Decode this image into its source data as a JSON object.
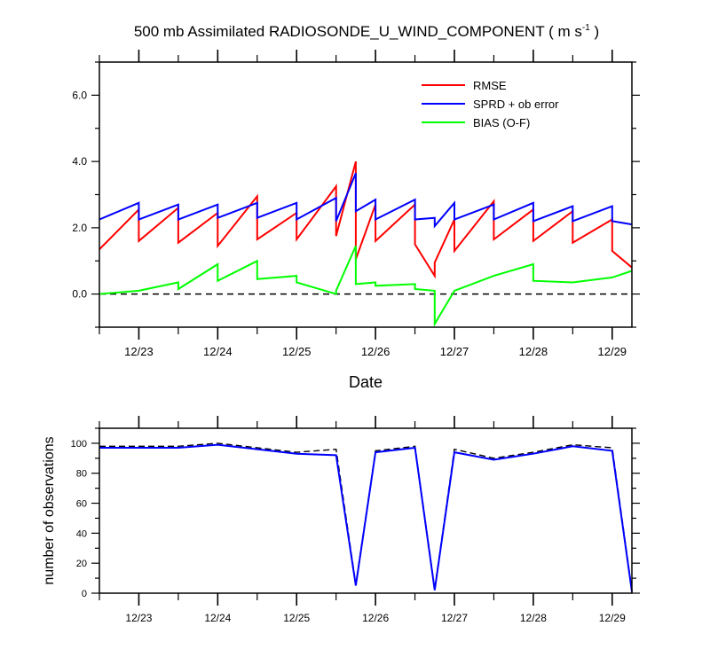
{
  "title": "500 mb Assimilated RADIOSONDE_U_WIND_COMPONENT ( m s",
  "title_sup": "-1",
  "title_end": " )",
  "chart_data": [
    {
      "type": "line",
      "xlabel": "Date",
      "ylabel": "",
      "xlim": [
        0,
        6.75
      ],
      "ylim": [
        -1.0,
        7.0
      ],
      "x_ticks": [
        {
          "x": 0.5,
          "label": "12/23"
        },
        {
          "x": 1.5,
          "label": "12/24"
        },
        {
          "x": 2.5,
          "label": "12/25"
        },
        {
          "x": 3.5,
          "label": "12/26"
        },
        {
          "x": 4.5,
          "label": "12/27"
        },
        {
          "x": 5.5,
          "label": "12/28"
        },
        {
          "x": 6.5,
          "label": "12/29"
        }
      ],
      "y_ticks": [
        {
          "y": 0,
          "label": "0.0"
        },
        {
          "y": 2,
          "label": "2.0"
        },
        {
          "y": 4,
          "label": "4.0"
        },
        {
          "y": 6,
          "label": "6.0"
        }
      ],
      "legend_position": "top-right",
      "reference_line": {
        "y": 0,
        "style": "dashed"
      },
      "series": [
        {
          "name": "RMSE",
          "color": "#ff0000",
          "points": [
            [
              0,
              1.35
            ],
            [
              0.5,
              2.55
            ],
            [
              0.5,
              1.6
            ],
            [
              1.0,
              2.6
            ],
            [
              1.0,
              1.55
            ],
            [
              1.5,
              2.45
            ],
            [
              1.5,
              1.45
            ],
            [
              2.0,
              2.95
            ],
            [
              2.0,
              1.65
            ],
            [
              2.5,
              2.45
            ],
            [
              2.5,
              1.65
            ],
            [
              3.0,
              3.25
            ],
            [
              3.0,
              1.75
            ],
            [
              3.25,
              4.0
            ],
            [
              3.25,
              1.05
            ],
            [
              3.5,
              2.7
            ],
            [
              3.5,
              1.6
            ],
            [
              4.0,
              2.7
            ],
            [
              4.0,
              1.5
            ],
            [
              4.25,
              0.55
            ],
            [
              4.25,
              0.95
            ],
            [
              4.5,
              2.25
            ],
            [
              4.5,
              1.3
            ],
            [
              5.0,
              2.8
            ],
            [
              5.0,
              1.65
            ],
            [
              5.5,
              2.55
            ],
            [
              5.5,
              1.6
            ],
            [
              6.0,
              2.5
            ],
            [
              6.0,
              1.55
            ],
            [
              6.5,
              2.25
            ],
            [
              6.5,
              1.3
            ],
            [
              6.75,
              0.8
            ]
          ]
        },
        {
          "name": "SPRD + ob error",
          "color": "#0000ff",
          "points": [
            [
              0,
              2.25
            ],
            [
              0.5,
              2.75
            ],
            [
              0.5,
              2.25
            ],
            [
              1.0,
              2.7
            ],
            [
              1.0,
              2.25
            ],
            [
              1.5,
              2.7
            ],
            [
              1.5,
              2.3
            ],
            [
              2.0,
              2.75
            ],
            [
              2.0,
              2.3
            ],
            [
              2.5,
              2.75
            ],
            [
              2.5,
              2.25
            ],
            [
              3.0,
              2.9
            ],
            [
              3.0,
              2.2
            ],
            [
              3.25,
              3.65
            ],
            [
              3.25,
              2.5
            ],
            [
              3.5,
              2.85
            ],
            [
              3.5,
              2.25
            ],
            [
              4.0,
              2.85
            ],
            [
              4.0,
              2.25
            ],
            [
              4.25,
              2.3
            ],
            [
              4.25,
              2.05
            ],
            [
              4.5,
              2.75
            ],
            [
              4.5,
              2.25
            ],
            [
              5.0,
              2.7
            ],
            [
              5.0,
              2.25
            ],
            [
              5.5,
              2.75
            ],
            [
              5.5,
              2.2
            ],
            [
              6.0,
              2.65
            ],
            [
              6.0,
              2.2
            ],
            [
              6.5,
              2.65
            ],
            [
              6.5,
              2.2
            ],
            [
              6.75,
              2.1
            ]
          ]
        },
        {
          "name": "BIAS (O-F)",
          "color": "#00ff00",
          "points": [
            [
              0,
              0
            ],
            [
              0.5,
              0.1
            ],
            [
              1.0,
              0.35
            ],
            [
              1.0,
              0.15
            ],
            [
              1.5,
              0.9
            ],
            [
              1.5,
              0.4
            ],
            [
              2.0,
              1.0
            ],
            [
              2.0,
              0.45
            ],
            [
              2.5,
              0.55
            ],
            [
              2.5,
              0.35
            ],
            [
              3.0,
              0.0
            ],
            [
              3.0,
              0.1
            ],
            [
              3.25,
              1.45
            ],
            [
              3.25,
              0.3
            ],
            [
              3.5,
              0.35
            ],
            [
              3.5,
              0.25
            ],
            [
              4.0,
              0.3
            ],
            [
              4.0,
              0.15
            ],
            [
              4.25,
              0.1
            ],
            [
              4.25,
              -0.9
            ],
            [
              4.5,
              0.1
            ],
            [
              5.0,
              0.55
            ],
            [
              5.5,
              0.9
            ],
            [
              5.5,
              0.4
            ],
            [
              6.0,
              0.35
            ],
            [
              6.5,
              0.5
            ],
            [
              6.75,
              0.7
            ]
          ]
        }
      ]
    },
    {
      "type": "line",
      "xlabel": "",
      "ylabel": "number of observations",
      "xlim": [
        0,
        6.75
      ],
      "ylim": [
        0,
        110
      ],
      "x_ticks": [
        {
          "x": 0.5,
          "label": "12/23"
        },
        {
          "x": 1.5,
          "label": "12/24"
        },
        {
          "x": 2.5,
          "label": "12/25"
        },
        {
          "x": 3.5,
          "label": "12/26"
        },
        {
          "x": 4.5,
          "label": "12/27"
        },
        {
          "x": 5.5,
          "label": "12/28"
        },
        {
          "x": 6.5,
          "label": "12/29"
        }
      ],
      "y_ticks": [
        {
          "y": 0,
          "label": "0"
        },
        {
          "y": 20,
          "label": "20"
        },
        {
          "y": 40,
          "label": "40"
        },
        {
          "y": 60,
          "label": "60"
        },
        {
          "y": 80,
          "label": "80"
        },
        {
          "y": 100,
          "label": "100"
        }
      ],
      "series": [
        {
          "style": "dashed",
          "color": "#000000",
          "points": [
            [
              0,
              98
            ],
            [
              1.0,
              98
            ],
            [
              1.5,
              100
            ],
            [
              2.5,
              94
            ],
            [
              3.0,
              96
            ],
            [
              3.25,
              6
            ],
            [
              3.5,
              95
            ],
            [
              4.0,
              98
            ],
            [
              4.25,
              3
            ],
            [
              4.5,
              96
            ],
            [
              5.0,
              90
            ],
            [
              5.5,
              94
            ],
            [
              6.0,
              99
            ],
            [
              6.5,
              97
            ],
            [
              6.75,
              2
            ]
          ]
        },
        {
          "style": "solid",
          "color": "#0000ff",
          "points": [
            [
              0,
              97
            ],
            [
              1.0,
              97
            ],
            [
              1.5,
              99
            ],
            [
              2.5,
              93
            ],
            [
              3.0,
              92
            ],
            [
              3.25,
              5
            ],
            [
              3.5,
              94
            ],
            [
              4.0,
              97
            ],
            [
              4.25,
              2
            ],
            [
              4.5,
              94
            ],
            [
              5.0,
              89
            ],
            [
              5.5,
              93
            ],
            [
              6.0,
              98
            ],
            [
              6.5,
              95
            ],
            [
              6.75,
              1
            ]
          ]
        }
      ]
    }
  ]
}
